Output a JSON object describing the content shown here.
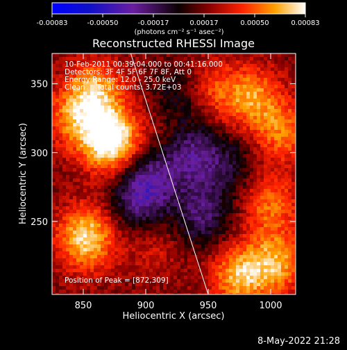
{
  "chart_data": {
    "type": "heatmap",
    "title": "Reconstructed RHESSI Image",
    "xlabel": "Heliocentric X (arcsec)",
    "ylabel": "Heliocentric Y (arcsec)",
    "xlim": [
      825,
      1020
    ],
    "ylim": [
      197,
      372
    ],
    "xticks": [
      850,
      900,
      950,
      1000
    ],
    "yticks": [
      250,
      300,
      350
    ],
    "colorbar": {
      "ticks": [
        "-0.00083",
        "-0.00050",
        "-0.00017",
        "0.00017",
        "0.00050",
        "0.00083"
      ],
      "range": [
        -0.00083,
        0.00083
      ],
      "unit_label": "(photons cm⁻² s⁻¹ asec⁻²)"
    },
    "annotations": {
      "time_range": "10-Feb-2011 00:39:04.000 to 00:41:16.000",
      "detectors": "Detectors: 3F 4F 5F 6F 7F 8F, Att 0",
      "energy_range": "Energy Range: 12.0 - 25.0 keV",
      "clean": "Clean     Total counts: 3.72E+03",
      "peak": "Position of Peak = [872,309]"
    },
    "peak_position": [
      872,
      309
    ],
    "limb_line": [
      [
        888,
        372
      ],
      [
        950,
        197
      ]
    ],
    "hotspots": [
      {
        "x": 872,
        "y": 309,
        "v": 0.00083
      },
      {
        "x": 852,
        "y": 238,
        "v": 0.00065
      },
      {
        "x": 860,
        "y": 345,
        "v": 0.0005
      },
      {
        "x": 843,
        "y": 325,
        "v": 0.00042
      },
      {
        "x": 975,
        "y": 210,
        "v": 0.00055
      },
      {
        "x": 1005,
        "y": 220,
        "v": 0.0005
      },
      {
        "x": 1000,
        "y": 262,
        "v": 0.0004
      },
      {
        "x": 985,
        "y": 340,
        "v": 0.00048
      },
      {
        "x": 1010,
        "y": 315,
        "v": 0.00042
      },
      {
        "x": 950,
        "y": 345,
        "v": 0.00038
      },
      {
        "x": 920,
        "y": 310,
        "v": 0.00022
      },
      {
        "x": 905,
        "y": 230,
        "v": 0.0002
      },
      {
        "x": 895,
        "y": 265,
        "v": -0.00045
      },
      {
        "x": 935,
        "y": 300,
        "v": -0.0005
      },
      {
        "x": 945,
        "y": 255,
        "v": -0.00042
      },
      {
        "x": 905,
        "y": 285,
        "v": -0.00038
      },
      {
        "x": 965,
        "y": 290,
        "v": -0.0003
      },
      {
        "x": 930,
        "y": 340,
        "v": -0.00035
      }
    ]
  },
  "footer": {
    "date": "8-May-2022 21:28"
  }
}
